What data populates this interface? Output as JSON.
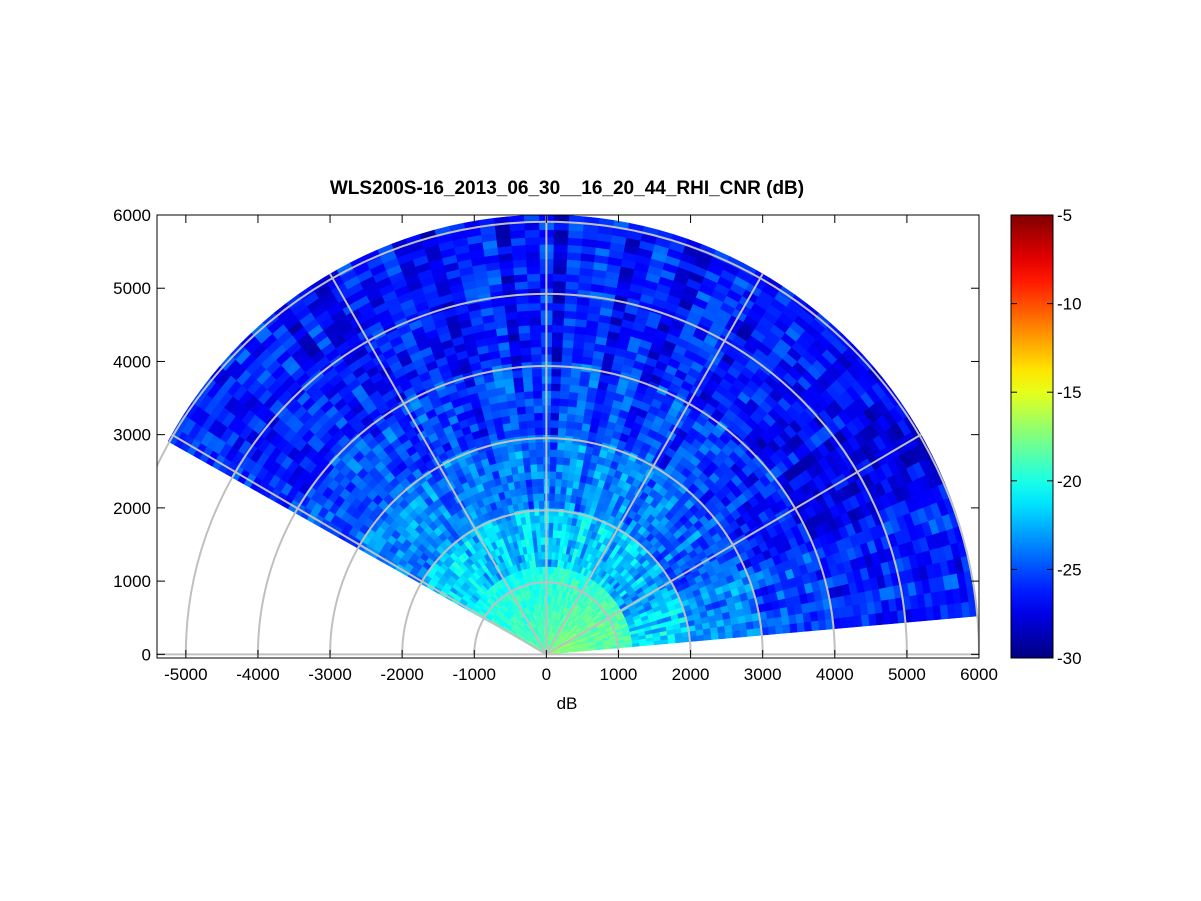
{
  "chart_data": {
    "type": "heatmap",
    "subtype": "polar-rhi-scan",
    "title": "WLS200S-16_2013_06_30__16_20_44_RHI_CNR (dB)",
    "xlabel": "dB",
    "ylabel": "",
    "xlim": [
      -5400,
      6000
    ],
    "ylim": [
      -50,
      6000
    ],
    "xticks": [
      -5000,
      -4000,
      -3000,
      -2000,
      -1000,
      0,
      1000,
      2000,
      3000,
      4000,
      5000,
      6000
    ],
    "yticks": [
      0,
      1000,
      2000,
      3000,
      4000,
      5000,
      6000
    ],
    "grid": true,
    "polar_grid": {
      "ring_ranges": [
        1000,
        2000,
        3000,
        4000,
        5000,
        6000
      ],
      "spoke_angles_deg": [
        0,
        30,
        60,
        90,
        120,
        150,
        180
      ]
    },
    "scan": {
      "angle_range_deg": [
        5,
        151
      ],
      "max_range": 6000,
      "range_gate": 100
    },
    "colorbar": {
      "colormap": "jet",
      "lim": [
        -30,
        -5
      ],
      "ticks": [
        -5,
        -10,
        -15,
        -20,
        -25,
        -30
      ],
      "position": "right"
    },
    "value_summary": [
      {
        "range": [
          0,
          1000
        ],
        "cnr_db": -20
      },
      {
        "range": [
          1000,
          2000
        ],
        "cnr_db": -22
      },
      {
        "range": [
          2000,
          3000
        ],
        "cnr_db": -24
      },
      {
        "range": [
          3000,
          4000
        ],
        "cnr_db": -25.5
      },
      {
        "range": [
          4000,
          6000
        ],
        "cnr_db": -26.5
      }
    ]
  }
}
